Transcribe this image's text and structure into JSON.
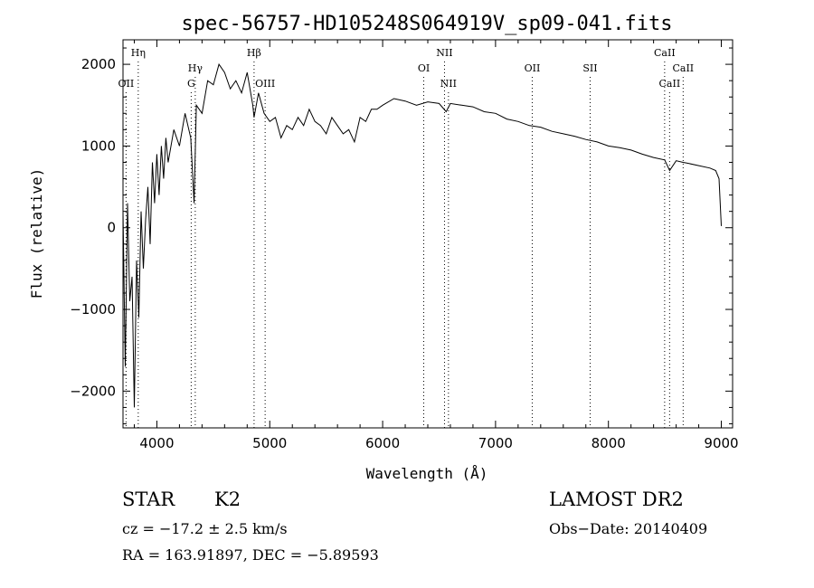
{
  "chart_data": {
    "type": "line",
    "title": "spec-56757-HD105248S064919V_sp09-041.fits",
    "xlabel": "Wavelength (Å)",
    "ylabel": "Flux (relative)",
    "xlim": [
      3700,
      9100
    ],
    "ylim": [
      -2450,
      2300
    ],
    "xticks": [
      4000,
      5000,
      6000,
      7000,
      8000,
      9000
    ],
    "yticks": [
      -2000,
      -1000,
      0,
      1000,
      2000
    ],
    "grid": false,
    "series": [
      {
        "x": [
          3700,
          3720,
          3740,
          3760,
          3780,
          3800,
          3820,
          3840,
          3860,
          3880,
          3900,
          3920,
          3940,
          3960,
          3980,
          4000,
          4020,
          4040,
          4060,
          4080,
          4100,
          4150,
          4200,
          4250,
          4300,
          4330,
          4350,
          4400,
          4450,
          4500,
          4550,
          4600,
          4650,
          4700,
          4750,
          4800,
          4850,
          4861,
          4900,
          4950,
          5000,
          5050,
          5100,
          5150,
          5200,
          5250,
          5300,
          5350,
          5400,
          5450,
          5500,
          5550,
          5600,
          5650,
          5700,
          5750,
          5800,
          5850,
          5900,
          5950,
          6000,
          6100,
          6200,
          6300,
          6400,
          6500,
          6563,
          6600,
          6700,
          6800,
          6900,
          7000,
          7100,
          7200,
          7300,
          7400,
          7500,
          7600,
          7700,
          7800,
          7900,
          8000,
          8100,
          8200,
          8300,
          8400,
          8498,
          8542,
          8600,
          8662,
          8700,
          8800,
          8900,
          8950,
          8980,
          9000
        ],
        "y": [
          200,
          -1700,
          300,
          -900,
          -600,
          -2200,
          -400,
          -1100,
          200,
          -500,
          100,
          500,
          -200,
          800,
          300,
          900,
          400,
          1000,
          600,
          1100,
          800,
          1200,
          1000,
          1400,
          1100,
          300,
          1500,
          1400,
          1800,
          1750,
          2000,
          1900,
          1700,
          1800,
          1650,
          1900,
          1500,
          1350,
          1650,
          1400,
          1300,
          1350,
          1100,
          1250,
          1200,
          1350,
          1250,
          1450,
          1300,
          1250,
          1150,
          1350,
          1250,
          1150,
          1200,
          1050,
          1350,
          1300,
          1450,
          1450,
          1500,
          1580,
          1550,
          1500,
          1540,
          1520,
          1420,
          1520,
          1500,
          1480,
          1420,
          1400,
          1330,
          1300,
          1250,
          1230,
          1180,
          1150,
          1120,
          1080,
          1050,
          1000,
          980,
          950,
          900,
          860,
          830,
          700,
          820,
          800,
          790,
          760,
          730,
          700,
          600,
          20
        ]
      }
    ],
    "lines": [
      {
        "label": "Hη",
        "x": 3835,
        "row": 1
      },
      {
        "label": "OII",
        "x": 3727,
        "row": 3
      },
      {
        "label": "Hγ",
        "x": 4340,
        "row": 2
      },
      {
        "label": "G",
        "x": 4304,
        "row": 3
      },
      {
        "label": "Hβ",
        "x": 4861,
        "row": 1
      },
      {
        "label": "OIII",
        "x": 4959,
        "row": 3
      },
      {
        "label": "NII",
        "x": 6548,
        "row": 1
      },
      {
        "label": "OI",
        "x": 6364,
        "row": 2
      },
      {
        "label": "NII",
        "x": 6583,
        "row": 3
      },
      {
        "label": "OII",
        "x": 7325,
        "row": 2
      },
      {
        "label": "SII",
        "x": 7838,
        "row": 2
      },
      {
        "label": "CaII",
        "x": 8498,
        "row": 1
      },
      {
        "label": "CaII",
        "x": 8662,
        "row": 2
      },
      {
        "label": "CaII",
        "x": 8542,
        "row": 3
      }
    ]
  },
  "info": {
    "object_type": "STAR",
    "subclass": "K2",
    "survey": "LAMOST DR2",
    "cz": "cz = −17.2 ± 2.5 km/s",
    "obs_date": "Obs−Date: 20140409",
    "coords": "RA = 163.91897, DEC =  −5.89593"
  }
}
